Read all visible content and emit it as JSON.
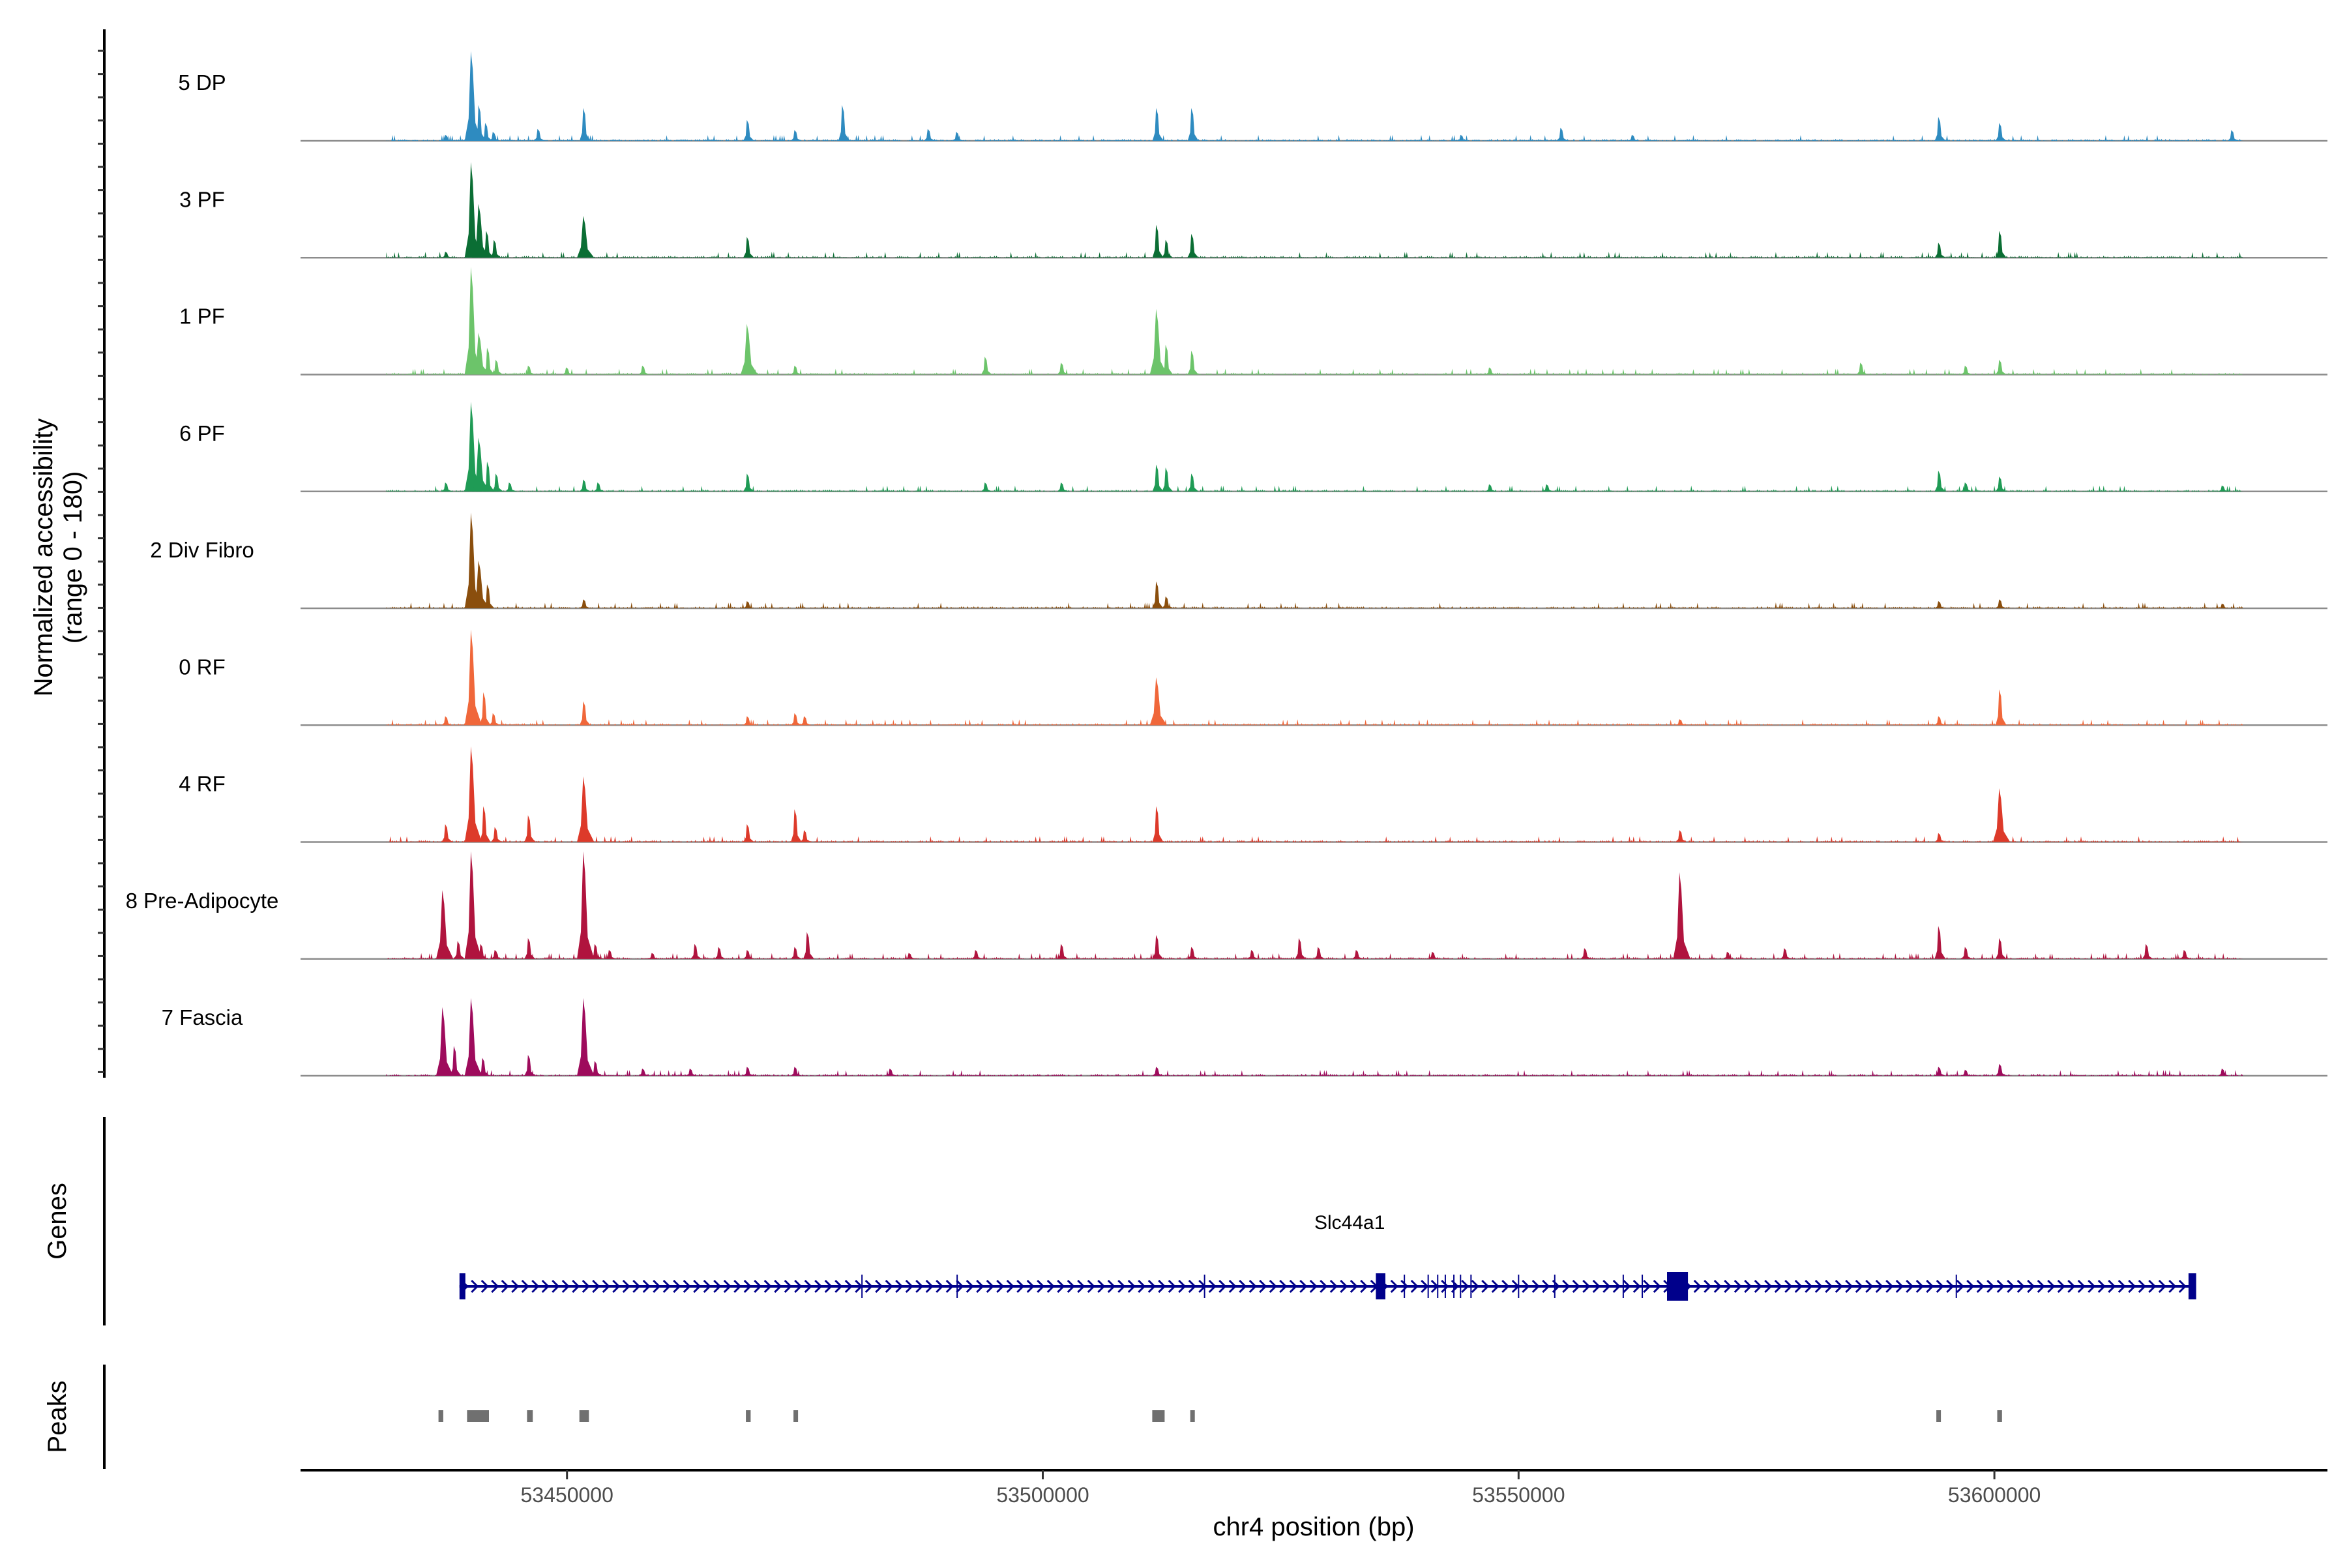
{
  "chart_data": {
    "type": "area",
    "title": "",
    "ylabel": "Normalized accessibility",
    "ylabel_range": "(range 0 - 180)",
    "xlabel": "chr4 position (bp)",
    "xlim": [
      53422000,
      53635000
    ],
    "ylim": [
      0,
      180
    ],
    "x_ticks": [
      {
        "value": 53450000,
        "label": "53450000"
      },
      {
        "value": 53500000,
        "label": "53500000"
      },
      {
        "value": 53550000,
        "label": "53550000"
      },
      {
        "value": 53600000,
        "label": "53600000"
      }
    ],
    "coverage_extent": [
      53431000,
      53626000
    ],
    "tracks": [
      {
        "name": "5 DP",
        "color": "#2e8bc0",
        "peaks": [
          [
            53437300,
            10
          ],
          [
            53440000,
            150
          ],
          [
            53440800,
            60
          ],
          [
            53441500,
            30
          ],
          [
            53442300,
            15
          ],
          [
            53447000,
            20
          ],
          [
            53451800,
            55
          ],
          [
            53469000,
            35
          ],
          [
            53474000,
            18
          ],
          [
            53479000,
            60
          ],
          [
            53488000,
            20
          ],
          [
            53491000,
            15
          ],
          [
            53512000,
            55
          ],
          [
            53515700,
            55
          ],
          [
            53544000,
            10
          ],
          [
            53554500,
            22
          ],
          [
            53562000,
            10
          ],
          [
            53594200,
            40
          ],
          [
            53600600,
            30
          ],
          [
            53625000,
            18
          ]
        ]
      },
      {
        "name": "3 PF",
        "color": "#0b6e34",
        "peaks": [
          [
            53437300,
            10
          ],
          [
            53440000,
            160
          ],
          [
            53440800,
            90
          ],
          [
            53441600,
            45
          ],
          [
            53442400,
            30
          ],
          [
            53451800,
            70
          ],
          [
            53469000,
            35
          ],
          [
            53512000,
            55
          ],
          [
            53513000,
            30
          ],
          [
            53515700,
            40
          ],
          [
            53594200,
            25
          ],
          [
            53600600,
            45
          ]
        ]
      },
      {
        "name": "1 PF",
        "color": "#6cc46a",
        "peaks": [
          [
            53440000,
            180
          ],
          [
            53440800,
            70
          ],
          [
            53441700,
            45
          ],
          [
            53442600,
            25
          ],
          [
            53446000,
            15
          ],
          [
            53450000,
            12
          ],
          [
            53458000,
            15
          ],
          [
            53469000,
            85
          ],
          [
            53474000,
            15
          ],
          [
            53494000,
            30
          ],
          [
            53502000,
            20
          ],
          [
            53512000,
            110
          ],
          [
            53513000,
            50
          ],
          [
            53515700,
            40
          ],
          [
            53547000,
            12
          ],
          [
            53586000,
            20
          ],
          [
            53597000,
            15
          ],
          [
            53600600,
            25
          ]
        ]
      },
      {
        "name": "6 PF",
        "color": "#1f9b55",
        "peaks": [
          [
            53437300,
            15
          ],
          [
            53440000,
            150
          ],
          [
            53440800,
            90
          ],
          [
            53441700,
            50
          ],
          [
            53442600,
            30
          ],
          [
            53444000,
            15
          ],
          [
            53451800,
            20
          ],
          [
            53453300,
            15
          ],
          [
            53469000,
            30
          ],
          [
            53494000,
            15
          ],
          [
            53502000,
            15
          ],
          [
            53512000,
            45
          ],
          [
            53513000,
            40
          ],
          [
            53515700,
            30
          ],
          [
            53547000,
            12
          ],
          [
            53553000,
            12
          ],
          [
            53594200,
            35
          ],
          [
            53597000,
            15
          ],
          [
            53600600,
            25
          ],
          [
            53624000,
            10
          ]
        ]
      },
      {
        "name": "2 Div Fibro",
        "color": "#8a4e0d",
        "peaks": [
          [
            53440000,
            160
          ],
          [
            53440800,
            80
          ],
          [
            53441700,
            40
          ],
          [
            53451800,
            15
          ],
          [
            53469000,
            12
          ],
          [
            53512000,
            45
          ],
          [
            53513000,
            20
          ],
          [
            53594200,
            12
          ],
          [
            53600600,
            15
          ],
          [
            53624000,
            8
          ]
        ]
      },
      {
        "name": "0 RF",
        "color": "#f0673a",
        "peaks": [
          [
            53437300,
            15
          ],
          [
            53440000,
            160
          ],
          [
            53441300,
            55
          ],
          [
            53442300,
            20
          ],
          [
            53451800,
            40
          ],
          [
            53469000,
            15
          ],
          [
            53474000,
            20
          ],
          [
            53475000,
            15
          ],
          [
            53512000,
            80
          ],
          [
            53567000,
            10
          ],
          [
            53594200,
            15
          ],
          [
            53600600,
            60
          ]
        ]
      },
      {
        "name": "4 RF",
        "color": "#dd3a2a",
        "peaks": [
          [
            53437300,
            30
          ],
          [
            53440000,
            160
          ],
          [
            53441300,
            60
          ],
          [
            53442500,
            25
          ],
          [
            53446000,
            45
          ],
          [
            53451800,
            110
          ],
          [
            53469000,
            30
          ],
          [
            53474000,
            55
          ],
          [
            53475000,
            20
          ],
          [
            53512000,
            60
          ],
          [
            53567000,
            20
          ],
          [
            53594200,
            15
          ],
          [
            53600600,
            90
          ]
        ]
      },
      {
        "name": "8 Pre-Adipocyte",
        "color": "#b0143e",
        "peaks": [
          [
            53437000,
            115
          ],
          [
            53438600,
            30
          ],
          [
            53440000,
            185
          ],
          [
            53441000,
            25
          ],
          [
            53442500,
            15
          ],
          [
            53446000,
            35
          ],
          [
            53451800,
            190
          ],
          [
            53453000,
            25
          ],
          [
            53454500,
            15
          ],
          [
            53459000,
            10
          ],
          [
            53463500,
            25
          ],
          [
            53466000,
            20
          ],
          [
            53469000,
            15
          ],
          [
            53474000,
            20
          ],
          [
            53475300,
            45
          ],
          [
            53486000,
            10
          ],
          [
            53493000,
            15
          ],
          [
            53502000,
            25
          ],
          [
            53512000,
            40
          ],
          [
            53515700,
            20
          ],
          [
            53522000,
            15
          ],
          [
            53527000,
            35
          ],
          [
            53529000,
            20
          ],
          [
            53533000,
            15
          ],
          [
            53541000,
            12
          ],
          [
            53557000,
            18
          ],
          [
            53567000,
            145
          ],
          [
            53572000,
            12
          ],
          [
            53578000,
            18
          ],
          [
            53594200,
            55
          ],
          [
            53597000,
            20
          ],
          [
            53600600,
            35
          ],
          [
            53616000,
            25
          ],
          [
            53620000,
            15
          ]
        ]
      },
      {
        "name": "7 Fascia",
        "color": "#9e0b5c",
        "peaks": [
          [
            53437000,
            115
          ],
          [
            53438200,
            50
          ],
          [
            53440000,
            130
          ],
          [
            53441200,
            30
          ],
          [
            53446000,
            35
          ],
          [
            53451800,
            130
          ],
          [
            53453000,
            25
          ],
          [
            53458000,
            12
          ],
          [
            53463000,
            12
          ],
          [
            53469000,
            15
          ],
          [
            53474000,
            15
          ],
          [
            53484000,
            12
          ],
          [
            53512000,
            15
          ],
          [
            53594200,
            15
          ],
          [
            53597000,
            10
          ],
          [
            53600600,
            20
          ],
          [
            53624000,
            12
          ]
        ]
      }
    ],
    "gene": {
      "label": "Genes",
      "name": "Slc44a1",
      "strand": "+",
      "color": "#00008b",
      "start": 53438700,
      "end": 53621000,
      "exons": [
        {
          "start": 53438700,
          "end": 53439200
        },
        {
          "start": 53535000,
          "end": 53536000
        },
        {
          "start": 53565600,
          "end": 53567800
        },
        {
          "start": 53620400,
          "end": 53621200
        }
      ],
      "minor_exons": [
        53481000,
        53491000,
        53517000,
        53538000,
        53540500,
        53541500,
        53542300,
        53543200,
        53543900,
        53545000,
        53550000,
        53553800,
        53561000,
        53563000,
        53596000
      ]
    },
    "peaks_track": {
      "label": "Peaks",
      "color": "#707070",
      "regions": [
        [
          53436500,
          53437000
        ],
        [
          53439500,
          53441800
        ],
        [
          53445800,
          53446400
        ],
        [
          53451300,
          53452300
        ],
        [
          53468800,
          53469300
        ],
        [
          53473800,
          53474200
        ],
        [
          53511500,
          53512800
        ],
        [
          53515500,
          53515900
        ],
        [
          53593900,
          53594300
        ],
        [
          53600300,
          53600800
        ]
      ]
    }
  }
}
